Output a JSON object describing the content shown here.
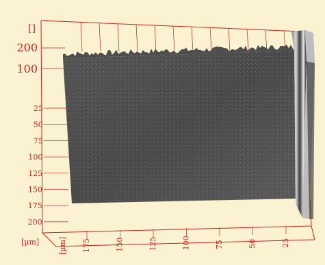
{
  "view": {
    "kind": "3d-surface-topography",
    "background_color": "#fbf2d2",
    "axis_color": "#cc1f1f",
    "surface_colors": [
      "#2e2e2e",
      "#5d5d5d",
      "#8a8a8a",
      "#c8c8c8"
    ]
  },
  "z_axis": {
    "unit_label": "[]",
    "ticks": [
      "200",
      "100"
    ]
  },
  "y_axis": {
    "unit_label": "[µm]",
    "ticks": [
      "25",
      "50",
      "75",
      "100",
      "125",
      "150",
      "175",
      "200"
    ]
  },
  "x_axis": {
    "unit_label": "[µm]",
    "ticks": [
      "175",
      "150",
      "125",
      "100",
      "75",
      "50",
      "25"
    ]
  }
}
